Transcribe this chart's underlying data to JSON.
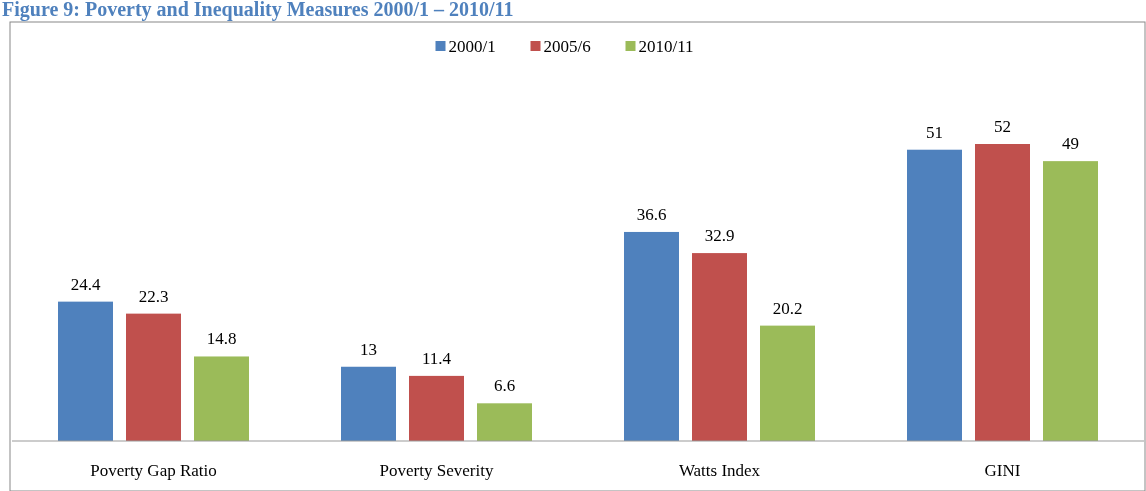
{
  "chart_data": {
    "type": "bar",
    "title": "Figure 9: Poverty and Inequality Measures 2000/1 – 2010/11",
    "categories": [
      "Poverty Gap Ratio",
      "Poverty Severity",
      "Watts Index",
      "GINI"
    ],
    "series": [
      {
        "name": "2000/1",
        "color": "#4f81bd",
        "values": [
          24.4,
          13,
          36.6,
          51
        ]
      },
      {
        "name": "2005/6",
        "color": "#c0504d",
        "values": [
          22.3,
          11.4,
          32.9,
          52
        ]
      },
      {
        "name": "2010/11",
        "color": "#9bbb59",
        "values": [
          14.8,
          6.6,
          20.2,
          49
        ]
      }
    ],
    "data_labels": true,
    "legend": "top"
  }
}
